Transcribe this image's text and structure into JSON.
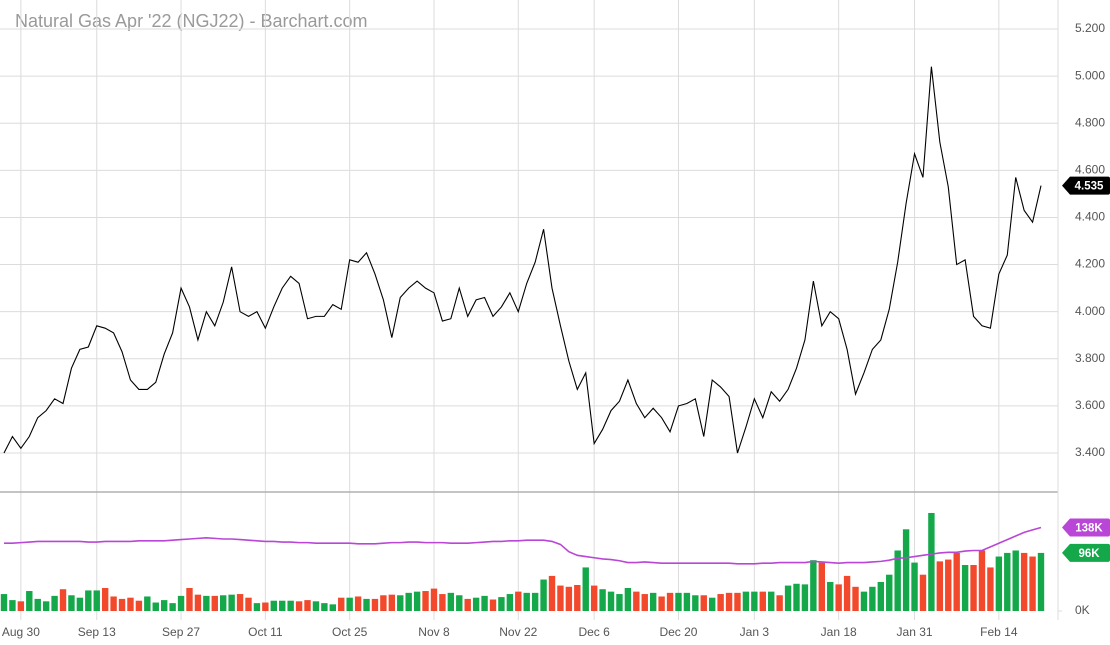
{
  "chart_data": [
    {
      "type": "line",
      "title": "Natural Gas Apr '22 (NGJ22) - Barchart.com",
      "categories": [
        null,
        null,
        "Aug 30",
        null,
        null,
        null,
        null,
        null,
        null,
        null,
        null,
        "Sep 13",
        null,
        null,
        null,
        null,
        null,
        null,
        null,
        null,
        null,
        "Sep 27",
        null,
        null,
        null,
        null,
        null,
        null,
        null,
        null,
        null,
        "Oct 11",
        null,
        null,
        null,
        null,
        null,
        null,
        null,
        null,
        null,
        "Oct 25",
        null,
        null,
        null,
        null,
        null,
        null,
        null,
        null,
        null,
        "Nov 8",
        null,
        null,
        null,
        null,
        null,
        null,
        null,
        null,
        null,
        "Nov 22",
        null,
        null,
        null,
        null,
        null,
        null,
        null,
        null,
        "Dec 6",
        null,
        null,
        null,
        null,
        null,
        null,
        null,
        null,
        null,
        "Dec 20",
        null,
        null,
        null,
        null,
        null,
        null,
        null,
        null,
        "Jan 3",
        null,
        null,
        null,
        null,
        null,
        null,
        null,
        null,
        null,
        "Jan 18",
        null,
        null,
        null,
        null,
        null,
        null,
        null,
        null,
        "Jan 31",
        null,
        null,
        null,
        null,
        null,
        null,
        null,
        null,
        null,
        "Feb 14",
        null,
        null,
        null,
        null,
        null
      ],
      "series": [
        {
          "color": "#000000",
          "values": [
            3.4,
            3.47,
            3.42,
            3.47,
            3.55,
            3.58,
            3.63,
            3.61,
            3.76,
            3.84,
            3.85,
            3.94,
            3.93,
            3.91,
            3.83,
            3.71,
            3.67,
            3.67,
            3.7,
            3.82,
            3.91,
            4.1,
            4.02,
            3.88,
            4.0,
            3.94,
            4.04,
            4.19,
            4.0,
            3.98,
            4.0,
            3.93,
            4.02,
            4.1,
            4.15,
            4.12,
            3.97,
            3.98,
            3.98,
            4.03,
            4.01,
            4.22,
            4.21,
            4.25,
            4.16,
            4.05,
            3.89,
            4.06,
            4.1,
            4.13,
            4.1,
            4.08,
            3.96,
            3.97,
            4.1,
            3.98,
            4.05,
            4.06,
            3.98,
            4.02,
            4.08,
            4.0,
            4.12,
            4.21,
            4.35,
            4.1,
            3.94,
            3.79,
            3.67,
            3.74,
            3.44,
            3.5,
            3.58,
            3.62,
            3.71,
            3.61,
            3.55,
            3.59,
            3.55,
            3.49,
            3.6,
            3.61,
            3.63,
            3.47,
            3.71,
            3.68,
            3.64,
            3.4,
            3.51,
            3.63,
            3.55,
            3.66,
            3.62,
            3.67,
            3.76,
            3.88,
            4.13,
            3.94,
            4.0,
            3.97,
            3.84,
            3.65,
            3.74,
            3.84,
            3.88,
            4.01,
            4.21,
            4.46,
            4.67,
            4.57,
            5.04,
            4.72,
            4.53,
            4.2,
            4.22,
            3.98,
            3.94,
            3.93,
            4.16,
            4.24,
            4.57,
            4.43,
            4.38,
            4.535
          ]
        }
      ],
      "ylim": [
        3.243,
        5.323
      ],
      "yticks": [
        {
          "value": 3.4,
          "label": "3.400"
        },
        {
          "value": 3.6,
          "label": "3.600"
        },
        {
          "value": 3.8,
          "label": "3.800"
        },
        {
          "value": 4.0,
          "label": "4.000"
        },
        {
          "value": 4.2,
          "label": "4.200"
        },
        {
          "value": 4.4,
          "label": "4.400"
        },
        {
          "value": 4.6,
          "label": "4.600"
        },
        {
          "value": 4.8,
          "label": "4.800"
        },
        {
          "value": 5.0,
          "label": "5.000"
        },
        {
          "value": 5.2,
          "label": "5.200"
        }
      ],
      "grid": true,
      "badge_color": "#000000"
    },
    {
      "type": "bar",
      "series": [
        {
          "type": "bar",
          "up_color": "#14a84a",
          "down_color": "#f2492c",
          "values": [
            28,
            18,
            16,
            33,
            20,
            16,
            25,
            36,
            26,
            22,
            34,
            34,
            38,
            24,
            20,
            22,
            17,
            24,
            14,
            18,
            13,
            25,
            38,
            27,
            25,
            25,
            26,
            27,
            28,
            22,
            13,
            14,
            17,
            17,
            17,
            16,
            18,
            16,
            13,
            11,
            22,
            22,
            24,
            20,
            20,
            26,
            27,
            26,
            30,
            32,
            33,
            37,
            28,
            30,
            26,
            20,
            22,
            25,
            19,
            23,
            28,
            32,
            30,
            30,
            52,
            58,
            42,
            40,
            43,
            72,
            42,
            36,
            32,
            28,
            38,
            32,
            28,
            30,
            24,
            30,
            30,
            30,
            26,
            26,
            22,
            28,
            30,
            30,
            32,
            32,
            32,
            32,
            26,
            42,
            45,
            44,
            84,
            80,
            48,
            44,
            58,
            40,
            32,
            40,
            48,
            60,
            100,
            135,
            80,
            60,
            162,
            82,
            85,
            96,
            76,
            76,
            100,
            72,
            90,
            96,
            100,
            96,
            90,
            96
          ],
          "value_labels": [
            null,
            null,
            null,
            null,
            null,
            null,
            null,
            null,
            null,
            null,
            null,
            null,
            null,
            null,
            null,
            null,
            null,
            null,
            null,
            null,
            null,
            null,
            null,
            null,
            null,
            null,
            null,
            null,
            null,
            null,
            null,
            null,
            null,
            null,
            null,
            null,
            null,
            null,
            null,
            null,
            null,
            null,
            null,
            null,
            null,
            null,
            null,
            null,
            null,
            null,
            null,
            null,
            null,
            null,
            null,
            null,
            null,
            null,
            null,
            null,
            null,
            null,
            null,
            null,
            null,
            null,
            null,
            null,
            null,
            null,
            null,
            null,
            null,
            null,
            null,
            null,
            null,
            null,
            null,
            null,
            null,
            null,
            null,
            null,
            null,
            null,
            null,
            null,
            null,
            null,
            null,
            null,
            null,
            null,
            null,
            null,
            null,
            null,
            null,
            null,
            null,
            null,
            null,
            null,
            null,
            null,
            null,
            null,
            null,
            null,
            null,
            null,
            null,
            null,
            null,
            null,
            null,
            null,
            null,
            null,
            null,
            null,
            null,
            "96K"
          ]
        },
        {
          "type": "line",
          "color": "#b946d6",
          "values": [
            112,
            112,
            113,
            114,
            115,
            115,
            115,
            115,
            115,
            115,
            114,
            114,
            115,
            115,
            115,
            115,
            116,
            116,
            116,
            116,
            117,
            118,
            119,
            120,
            121,
            120,
            119,
            119,
            118,
            117,
            116,
            115,
            115,
            114,
            114,
            113,
            113,
            112,
            112,
            112,
            112,
            112,
            111,
            111,
            111,
            112,
            113,
            113,
            114,
            114,
            113,
            113,
            113,
            112,
            112,
            112,
            113,
            114,
            115,
            115,
            116,
            116,
            117,
            117,
            117,
            115,
            110,
            98,
            92,
            90,
            88,
            86,
            85,
            83,
            80,
            80,
            81,
            80,
            79,
            79,
            79,
            79,
            79,
            79,
            79,
            79,
            79,
            78,
            78,
            78,
            79,
            79,
            80,
            80,
            80,
            80,
            82,
            81,
            80,
            79,
            80,
            80,
            80,
            81,
            82,
            84,
            87,
            88,
            90,
            92,
            94,
            96,
            97,
            97,
            99,
            100,
            100,
            106,
            112,
            118,
            124,
            130,
            134,
            138
          ],
          "value_labels": [
            null,
            null,
            null,
            null,
            null,
            null,
            null,
            null,
            null,
            null,
            null,
            null,
            null,
            null,
            null,
            null,
            null,
            null,
            null,
            null,
            null,
            null,
            null,
            null,
            null,
            null,
            null,
            null,
            null,
            null,
            null,
            null,
            null,
            null,
            null,
            null,
            null,
            null,
            null,
            null,
            null,
            null,
            null,
            null,
            null,
            null,
            null,
            null,
            null,
            null,
            null,
            null,
            null,
            null,
            null,
            null,
            null,
            null,
            null,
            null,
            null,
            null,
            null,
            null,
            null,
            null,
            null,
            null,
            null,
            null,
            null,
            null,
            null,
            null,
            null,
            null,
            null,
            null,
            null,
            null,
            null,
            null,
            null,
            null,
            null,
            null,
            null,
            null,
            null,
            null,
            null,
            null,
            null,
            null,
            null,
            null,
            null,
            null,
            null,
            null,
            null,
            null,
            null,
            null,
            null,
            null,
            null,
            null,
            null,
            null,
            null,
            null,
            null,
            null,
            null,
            null,
            null,
            null,
            null,
            null,
            null,
            null,
            null,
            "138K"
          ]
        }
      ],
      "ylim": [
        0,
        195
      ],
      "yticks": [
        {
          "value": 0,
          "label": "0K"
        }
      ]
    }
  ]
}
